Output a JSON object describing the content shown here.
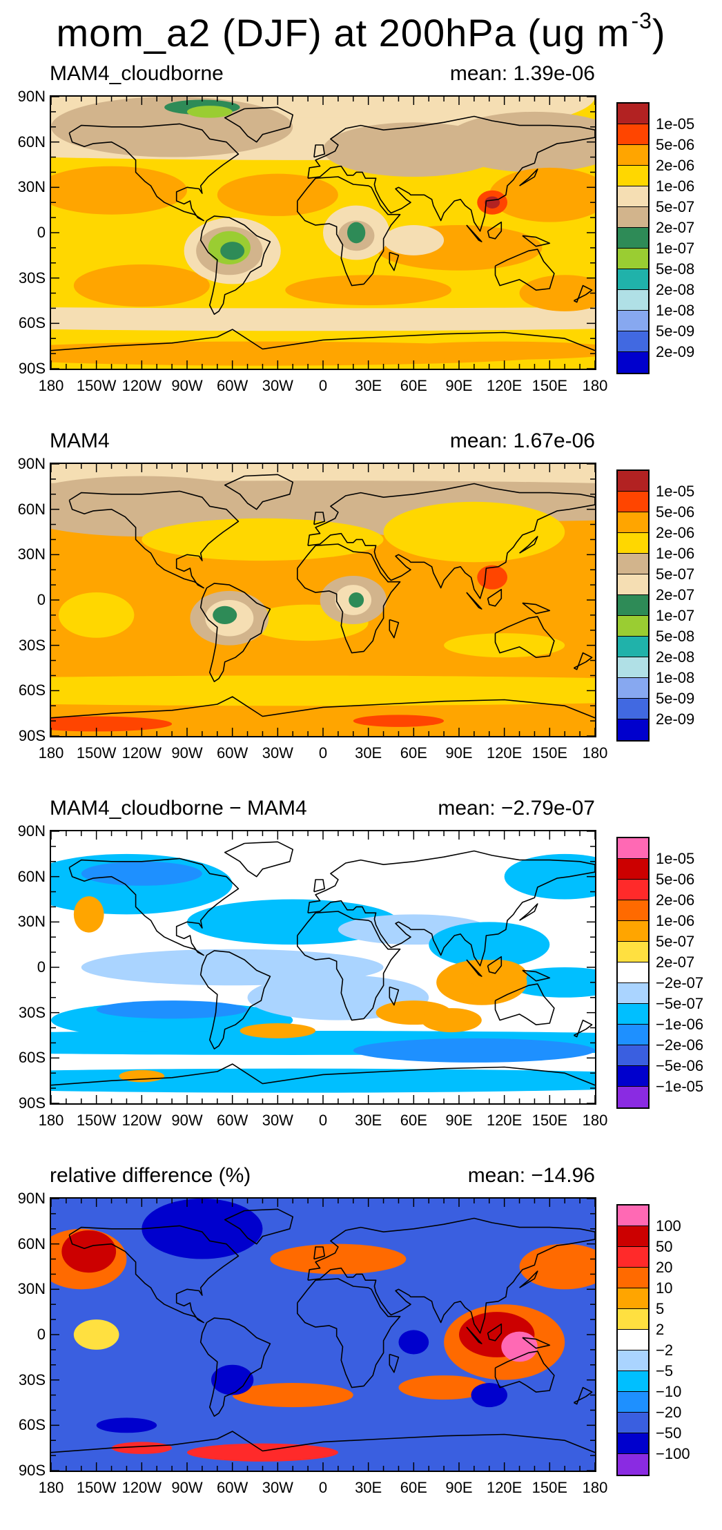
{
  "title": {
    "main": "mom_a2 (DJF) at 200hPa (ug m",
    "exp": "-3",
    "close": ")"
  },
  "axes": {
    "lat_ticks": [
      "90N",
      "60N",
      "30N",
      "0",
      "30S",
      "60S",
      "90S"
    ],
    "lon_ticks": [
      "180",
      "150W",
      "120W",
      "90W",
      "60W",
      "30W",
      "0",
      "30E",
      "60E",
      "90E",
      "120E",
      "150E",
      "180"
    ]
  },
  "chart_data": [
    {
      "type": "heatmap",
      "title": "MAM4_cloudborne",
      "annotation": "mean: 1.39e-06",
      "xlim": [
        -180,
        180
      ],
      "ylim": [
        -90,
        90
      ],
      "colorbar": {
        "levels": [
          "1e-05",
          "5e-06",
          "2e-06",
          "1e-06",
          "5e-07",
          "2e-07",
          "1e-07",
          "5e-08",
          "2e-08",
          "1e-08",
          "5e-09",
          "2e-09"
        ],
        "colors": [
          "#b22222",
          "#ff4500",
          "#ffa500",
          "#ffd700",
          "#f5deb3",
          "#d2b48c",
          "#2e8b57",
          "#9acd32",
          "#20b2aa",
          "#b0e0e6",
          "#87a8f0",
          "#4169e1",
          "#0000cd"
        ]
      }
    },
    {
      "type": "heatmap",
      "title": "MAM4",
      "annotation": "mean: 1.67e-06",
      "xlim": [
        -180,
        180
      ],
      "ylim": [
        -90,
        90
      ],
      "colorbar": {
        "levels": [
          "1e-05",
          "5e-06",
          "2e-06",
          "1e-06",
          "5e-07",
          "2e-07",
          "1e-07",
          "5e-08",
          "2e-08",
          "1e-08",
          "5e-09",
          "2e-09"
        ],
        "colors": [
          "#b22222",
          "#ff4500",
          "#ffa500",
          "#ffd700",
          "#d2b48c",
          "#f5deb3",
          "#2e8b57",
          "#9acd32",
          "#20b2aa",
          "#b0e0e6",
          "#87a8f0",
          "#4169e1",
          "#0000cd"
        ]
      }
    },
    {
      "type": "heatmap",
      "title": "MAM4_cloudborne − MAM4",
      "annotation": "mean: −2.79e-07",
      "xlim": [
        -180,
        180
      ],
      "ylim": [
        -90,
        90
      ],
      "colorbar": {
        "levels": [
          "1e-05",
          "5e-06",
          "2e-06",
          "1e-06",
          "5e-07",
          "2e-07",
          "−2e-07",
          "−5e-07",
          "−1e-06",
          "−2e-06",
          "−5e-06",
          "−1e-05"
        ],
        "colors": [
          "#ff69b4",
          "#cc0000",
          "#ff2a2a",
          "#ff6a00",
          "#ffa500",
          "#ffe040",
          "#ffffff",
          "#aad4ff",
          "#00bfff",
          "#1e90ff",
          "#3a5fe0",
          "#0000cd",
          "#8a2be2"
        ]
      }
    },
    {
      "type": "heatmap",
      "title": "relative difference (%)",
      "annotation": "mean: −14.96",
      "xlim": [
        -180,
        180
      ],
      "ylim": [
        -90,
        90
      ],
      "colorbar": {
        "levels": [
          "100",
          "50",
          "20",
          "10",
          "5",
          "2",
          "−2",
          "−5",
          "−10",
          "−20",
          "−50",
          "−100"
        ],
        "colors": [
          "#ff69b4",
          "#cc0000",
          "#ff2a2a",
          "#ff6a00",
          "#ffa500",
          "#ffe040",
          "#ffffff",
          "#aad4ff",
          "#00bfff",
          "#1e90ff",
          "#3a5fe0",
          "#0000cd",
          "#8a2be2"
        ]
      }
    }
  ]
}
